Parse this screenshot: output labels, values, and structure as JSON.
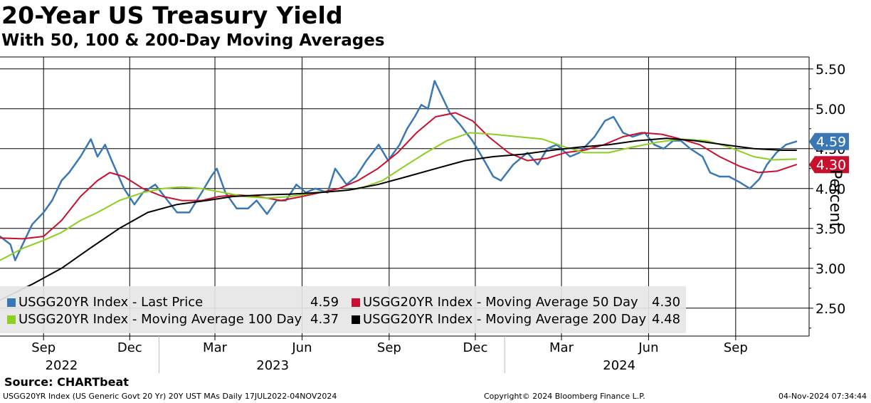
{
  "header": {
    "title": "20-Year US Treasury Yield",
    "subtitle": "With 50, 100 & 200-Day Moving Averages"
  },
  "footer": {
    "source": "Source: CHARTbeat",
    "description": "USGG20YR Index (US Generic Govt 20 Yr) 20Y UST MAs  Daily 17JUL2022-04NOV2024",
    "copyright": "Copyright© 2024 Bloomberg Finance L.P.",
    "timestamp": "04-Nov-2024 07:34:44"
  },
  "legend": {
    "items": [
      {
        "label": "USGG20YR Index - Last Price",
        "value": "4.59",
        "color": "#3a78b5"
      },
      {
        "label": "USGG20YR Index - Moving Average 50 Day",
        "value": "4.30",
        "color": "#c8102e"
      },
      {
        "label": "USGG20YR Index - Moving Average 100 Day",
        "value": "4.37",
        "color": "#8ccf1e"
      },
      {
        "label": "USGG20YR Index - Moving Average 200 Day",
        "value": "4.48",
        "color": "#000000"
      }
    ]
  },
  "chart_data": {
    "type": "line",
    "ylabel": "Percent",
    "ylim": [
      2.15,
      5.65
    ],
    "y_ticks": [
      "2.50",
      "3.00",
      "3.50",
      "4.00",
      "4.50",
      "5.00",
      "5.50"
    ],
    "x_range": [
      "2022-07-17",
      "2024-11-04"
    ],
    "x_ticks": [
      {
        "date": "2022-09-01",
        "label": "Sep"
      },
      {
        "date": "2022-12-01",
        "label": "Dec"
      },
      {
        "date": "2023-03-01",
        "label": "Mar"
      },
      {
        "date": "2023-06-01",
        "label": "Jun"
      },
      {
        "date": "2023-09-01",
        "label": "Sep"
      },
      {
        "date": "2023-12-01",
        "label": "Dec"
      },
      {
        "date": "2024-03-01",
        "label": "Mar"
      },
      {
        "date": "2024-06-01",
        "label": "Jun"
      },
      {
        "date": "2024-09-01",
        "label": "Sep"
      }
    ],
    "year_labels": [
      {
        "date": "2022-09-20",
        "label": "2022"
      },
      {
        "date": "2023-05-01",
        "label": "2023"
      },
      {
        "date": "2024-05-01",
        "label": "2024"
      }
    ],
    "year_dividers": [
      "2023-01-01",
      "2024-01-01"
    ],
    "last_value_tags": [
      {
        "series": "Last Price",
        "value": "4.59",
        "color": "#3a78b5"
      },
      {
        "series": "Moving Average 50 Day",
        "value": "4.30",
        "color": "#c8102e"
      }
    ],
    "series": [
      {
        "name": "USGG20YR Index - Last Price",
        "color": "#3a78b5",
        "points": [
          [
            "2022-07-17",
            3.4
          ],
          [
            "2022-07-28",
            3.3
          ],
          [
            "2022-08-02",
            3.1
          ],
          [
            "2022-08-10",
            3.3
          ],
          [
            "2022-08-20",
            3.55
          ],
          [
            "2022-09-01",
            3.7
          ],
          [
            "2022-09-10",
            3.85
          ],
          [
            "2022-09-20",
            4.1
          ],
          [
            "2022-09-28",
            4.2
          ],
          [
            "2022-10-10",
            4.4
          ],
          [
            "2022-10-21",
            4.62
          ],
          [
            "2022-10-28",
            4.4
          ],
          [
            "2022-11-05",
            4.55
          ],
          [
            "2022-11-12",
            4.35
          ],
          [
            "2022-11-25",
            4.0
          ],
          [
            "2022-12-06",
            3.8
          ],
          [
            "2022-12-15",
            3.95
          ],
          [
            "2022-12-28",
            4.05
          ],
          [
            "2023-01-10",
            3.85
          ],
          [
            "2023-01-20",
            3.7
          ],
          [
            "2023-02-02",
            3.7
          ],
          [
            "2023-02-15",
            3.95
          ],
          [
            "2023-02-25",
            4.15
          ],
          [
            "2023-03-03",
            4.25
          ],
          [
            "2023-03-12",
            3.95
          ],
          [
            "2023-03-24",
            3.75
          ],
          [
            "2023-04-05",
            3.75
          ],
          [
            "2023-04-14",
            3.85
          ],
          [
            "2023-04-25",
            3.68
          ],
          [
            "2023-05-05",
            3.85
          ],
          [
            "2023-05-15",
            3.85
          ],
          [
            "2023-05-26",
            4.05
          ],
          [
            "2023-06-05",
            3.95
          ],
          [
            "2023-06-15",
            4.0
          ],
          [
            "2023-06-28",
            3.95
          ],
          [
            "2023-07-06",
            4.25
          ],
          [
            "2023-07-18",
            4.05
          ],
          [
            "2023-07-28",
            4.15
          ],
          [
            "2023-08-08",
            4.35
          ],
          [
            "2023-08-21",
            4.55
          ],
          [
            "2023-08-31",
            4.35
          ],
          [
            "2023-09-12",
            4.55
          ],
          [
            "2023-09-20",
            4.75
          ],
          [
            "2023-09-28",
            4.9
          ],
          [
            "2023-10-05",
            5.05
          ],
          [
            "2023-10-12",
            5.0
          ],
          [
            "2023-10-19",
            5.35
          ],
          [
            "2023-10-27",
            5.15
          ],
          [
            "2023-11-04",
            4.95
          ],
          [
            "2023-11-15",
            4.8
          ],
          [
            "2023-11-28",
            4.6
          ],
          [
            "2023-12-08",
            4.4
          ],
          [
            "2023-12-20",
            4.15
          ],
          [
            "2023-12-28",
            4.1
          ],
          [
            "2024-01-10",
            4.3
          ],
          [
            "2024-01-25",
            4.45
          ],
          [
            "2024-02-05",
            4.3
          ],
          [
            "2024-02-15",
            4.5
          ],
          [
            "2024-02-25",
            4.55
          ],
          [
            "2024-03-10",
            4.4
          ],
          [
            "2024-03-20",
            4.45
          ],
          [
            "2024-04-05",
            4.65
          ],
          [
            "2024-04-16",
            4.85
          ],
          [
            "2024-04-25",
            4.9
          ],
          [
            "2024-05-05",
            4.7
          ],
          [
            "2024-05-15",
            4.65
          ],
          [
            "2024-05-28",
            4.7
          ],
          [
            "2024-06-07",
            4.55
          ],
          [
            "2024-06-17",
            4.5
          ],
          [
            "2024-06-27",
            4.6
          ],
          [
            "2024-07-05",
            4.6
          ],
          [
            "2024-07-15",
            4.5
          ],
          [
            "2024-07-28",
            4.4
          ],
          [
            "2024-08-05",
            4.2
          ],
          [
            "2024-08-15",
            4.15
          ],
          [
            "2024-08-25",
            4.15
          ],
          [
            "2024-09-05",
            4.08
          ],
          [
            "2024-09-16",
            4.0
          ],
          [
            "2024-09-26",
            4.12
          ],
          [
            "2024-10-04",
            4.3
          ],
          [
            "2024-10-14",
            4.45
          ],
          [
            "2024-10-24",
            4.55
          ],
          [
            "2024-11-04",
            4.59
          ]
        ]
      },
      {
        "name": "USGG20YR Index - Moving Average 50 Day",
        "color": "#c8102e",
        "points": [
          [
            "2022-07-17",
            3.38
          ],
          [
            "2022-08-10",
            3.37
          ],
          [
            "2022-09-01",
            3.4
          ],
          [
            "2022-09-20",
            3.6
          ],
          [
            "2022-10-10",
            3.9
          ],
          [
            "2022-10-28",
            4.1
          ],
          [
            "2022-11-10",
            4.2
          ],
          [
            "2022-11-25",
            4.15
          ],
          [
            "2022-12-15",
            4.0
          ],
          [
            "2023-01-05",
            3.9
          ],
          [
            "2023-01-25",
            3.85
          ],
          [
            "2023-02-15",
            3.85
          ],
          [
            "2023-03-05",
            3.9
          ],
          [
            "2023-03-25",
            3.92
          ],
          [
            "2023-04-15",
            3.9
          ],
          [
            "2023-05-10",
            3.85
          ],
          [
            "2023-06-01",
            3.9
          ],
          [
            "2023-06-20",
            3.95
          ],
          [
            "2023-07-10",
            4.0
          ],
          [
            "2023-07-30",
            4.1
          ],
          [
            "2023-08-20",
            4.25
          ],
          [
            "2023-09-10",
            4.45
          ],
          [
            "2023-09-30",
            4.7
          ],
          [
            "2023-10-20",
            4.9
          ],
          [
            "2023-11-10",
            4.95
          ],
          [
            "2023-11-28",
            4.85
          ],
          [
            "2023-12-15",
            4.65
          ],
          [
            "2024-01-05",
            4.45
          ],
          [
            "2024-01-25",
            4.35
          ],
          [
            "2024-02-15",
            4.38
          ],
          [
            "2024-03-05",
            4.45
          ],
          [
            "2024-03-25",
            4.48
          ],
          [
            "2024-04-15",
            4.55
          ],
          [
            "2024-05-05",
            4.65
          ],
          [
            "2024-05-25",
            4.7
          ],
          [
            "2024-06-15",
            4.68
          ],
          [
            "2024-07-05",
            4.62
          ],
          [
            "2024-07-25",
            4.55
          ],
          [
            "2024-08-15",
            4.4
          ],
          [
            "2024-09-05",
            4.28
          ],
          [
            "2024-09-25",
            4.2
          ],
          [
            "2024-10-15",
            4.22
          ],
          [
            "2024-11-04",
            4.3
          ]
        ]
      },
      {
        "name": "USGG20YR Index - Moving Average 100 Day",
        "color": "#8ccf1e",
        "points": [
          [
            "2022-07-17",
            3.1
          ],
          [
            "2022-08-10",
            3.25
          ],
          [
            "2022-09-01",
            3.35
          ],
          [
            "2022-09-20",
            3.45
          ],
          [
            "2022-10-10",
            3.6
          ],
          [
            "2022-10-28",
            3.7
          ],
          [
            "2022-11-20",
            3.85
          ],
          [
            "2022-12-15",
            3.95
          ],
          [
            "2023-01-05",
            4.0
          ],
          [
            "2023-01-25",
            4.02
          ],
          [
            "2023-02-15",
            4.0
          ],
          [
            "2023-03-10",
            3.95
          ],
          [
            "2023-04-01",
            3.9
          ],
          [
            "2023-04-25",
            3.88
          ],
          [
            "2023-05-20",
            3.9
          ],
          [
            "2023-06-15",
            3.95
          ],
          [
            "2023-07-10",
            3.97
          ],
          [
            "2023-08-01",
            4.0
          ],
          [
            "2023-08-25",
            4.1
          ],
          [
            "2023-09-20",
            4.3
          ],
          [
            "2023-10-10",
            4.45
          ],
          [
            "2023-11-01",
            4.6
          ],
          [
            "2023-11-25",
            4.7
          ],
          [
            "2023-12-20",
            4.68
          ],
          [
            "2024-01-15",
            4.65
          ],
          [
            "2024-02-10",
            4.62
          ],
          [
            "2024-03-05",
            4.52
          ],
          [
            "2024-03-25",
            4.45
          ],
          [
            "2024-04-20",
            4.45
          ],
          [
            "2024-05-15",
            4.52
          ],
          [
            "2024-06-10",
            4.58
          ],
          [
            "2024-07-05",
            4.62
          ],
          [
            "2024-08-01",
            4.6
          ],
          [
            "2024-08-25",
            4.52
          ],
          [
            "2024-09-20",
            4.4
          ],
          [
            "2024-10-10",
            4.36
          ],
          [
            "2024-11-04",
            4.37
          ]
        ]
      },
      {
        "name": "USGG20YR Index - Moving Average 200 Day",
        "color": "#000000",
        "points": [
          [
            "2022-07-17",
            2.6
          ],
          [
            "2022-08-20",
            2.8
          ],
          [
            "2022-09-20",
            3.0
          ],
          [
            "2022-10-20",
            3.25
          ],
          [
            "2022-11-20",
            3.5
          ],
          [
            "2022-12-20",
            3.7
          ],
          [
            "2023-01-20",
            3.8
          ],
          [
            "2023-02-20",
            3.85
          ],
          [
            "2023-03-20",
            3.9
          ],
          [
            "2023-04-20",
            3.92
          ],
          [
            "2023-05-20",
            3.93
          ],
          [
            "2023-06-20",
            3.95
          ],
          [
            "2023-07-20",
            3.98
          ],
          [
            "2023-08-20",
            4.05
          ],
          [
            "2023-09-20",
            4.15
          ],
          [
            "2023-10-20",
            4.25
          ],
          [
            "2023-11-20",
            4.35
          ],
          [
            "2023-12-20",
            4.4
          ],
          [
            "2024-01-20",
            4.43
          ],
          [
            "2024-02-20",
            4.48
          ],
          [
            "2024-03-20",
            4.52
          ],
          [
            "2024-04-20",
            4.55
          ],
          [
            "2024-05-20",
            4.6
          ],
          [
            "2024-06-20",
            4.63
          ],
          [
            "2024-07-20",
            4.6
          ],
          [
            "2024-08-20",
            4.55
          ],
          [
            "2024-09-20",
            4.5
          ],
          [
            "2024-10-20",
            4.48
          ],
          [
            "2024-11-04",
            4.48
          ]
        ]
      }
    ]
  }
}
